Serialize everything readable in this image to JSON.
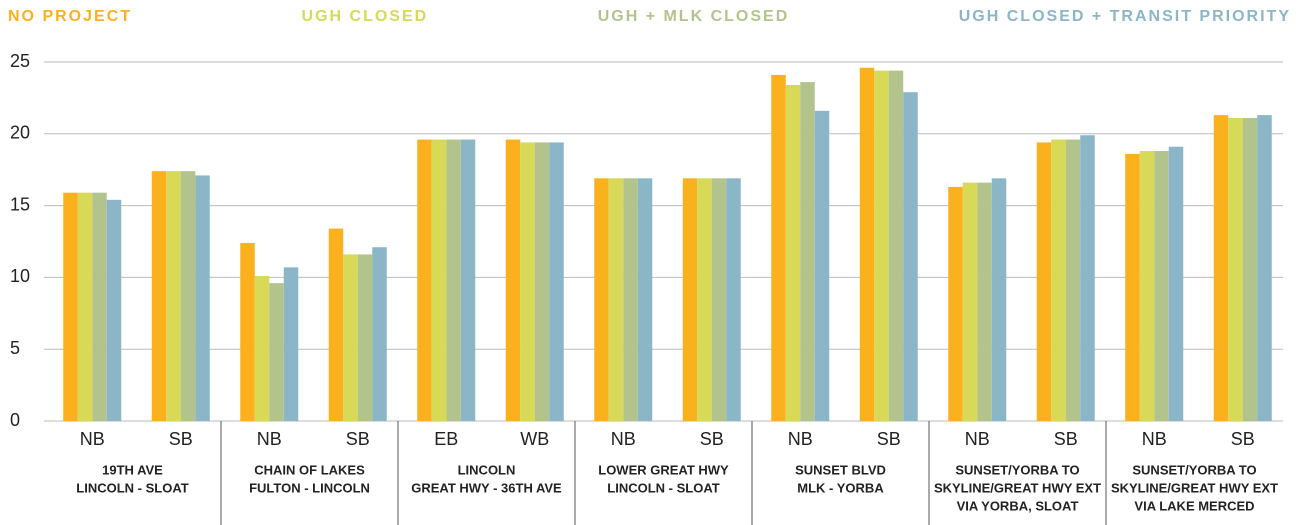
{
  "chart_data": {
    "type": "bar",
    "groups": [
      {
        "label": [
          "19TH AVE",
          "LINCOLN - SLOAT"
        ],
        "categories": [
          "NB",
          "SB"
        ]
      },
      {
        "label": [
          "CHAIN OF LAKES",
          "FULTON - LINCOLN"
        ],
        "categories": [
          "NB",
          "SB"
        ]
      },
      {
        "label": [
          "LINCOLN",
          "GREAT HWY - 36TH AVE"
        ],
        "categories": [
          "EB",
          "WB"
        ]
      },
      {
        "label": [
          "LOWER GREAT HWY",
          "LINCOLN - SLOAT"
        ],
        "categories": [
          "NB",
          "SB"
        ]
      },
      {
        "label": [
          "SUNSET BLVD",
          "MLK - YORBA"
        ],
        "categories": [
          "NB",
          "SB"
        ]
      },
      {
        "label": [
          "SUNSET/YORBA TO",
          "SKYLINE/GREAT HWY EXT",
          "VIA YORBA, SLOAT"
        ],
        "categories": [
          "NB",
          "SB"
        ]
      },
      {
        "label": [
          "SUNSET/YORBA TO",
          "SKYLINE/GREAT HWY EXT",
          "VIA LAKE MERCED"
        ],
        "categories": [
          "NB",
          "SB"
        ]
      }
    ],
    "series": [
      {
        "name": "NO PROJECT",
        "color": "#fbb11e",
        "values": [
          15.9,
          17.4,
          12.4,
          13.4,
          19.6,
          19.6,
          16.9,
          16.9,
          24.1,
          24.6,
          16.3,
          19.4,
          18.6,
          21.3
        ]
      },
      {
        "name": "UGH CLOSED",
        "color": "#d7d957",
        "values": [
          15.9,
          17.4,
          10.1,
          11.6,
          19.6,
          19.4,
          16.9,
          16.9,
          23.4,
          24.4,
          16.6,
          19.6,
          18.8,
          21.1
        ]
      },
      {
        "name": "UGH + MLK CLOSED",
        "color": "#b2c48b",
        "values": [
          15.9,
          17.4,
          9.6,
          11.6,
          19.6,
          19.4,
          16.9,
          16.9,
          23.6,
          24.4,
          16.6,
          19.6,
          18.8,
          21.1
        ]
      },
      {
        "name": "UGH CLOSED + TRANSIT PRIORITY",
        "color": "#8ab6c8",
        "values": [
          15.4,
          17.1,
          10.7,
          12.1,
          19.6,
          19.4,
          16.9,
          16.9,
          21.6,
          22.9,
          16.9,
          19.9,
          19.1,
          21.3
        ]
      }
    ],
    "ylim": [
      0,
      25
    ],
    "yticks": [
      0,
      5,
      10,
      15,
      20,
      25
    ],
    "grid": true,
    "legend": "top"
  }
}
